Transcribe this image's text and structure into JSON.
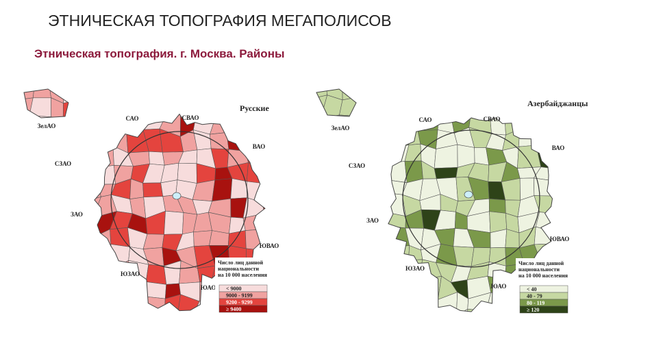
{
  "header": {
    "title": "ЭТНИЧЕСКАЯ ТОПОГРАФИЯ МЕГАПОЛИСОВ",
    "subtitle": "Этническая топография. г. Москва. Районы"
  },
  "maps": [
    {
      "title": "Русские",
      "district_labels": [
        "ЗелАО",
        "САО",
        "СВАО",
        "ВАО",
        "СЗАО",
        "ЗАО",
        "ЮВАО",
        "ЮЗАО",
        "ЮАО"
      ],
      "legend": {
        "title_lines": [
          "Число лиц данной",
          "национальности",
          "на 10 000 населения"
        ],
        "items": [
          {
            "label": "< 9000",
            "color": "#f7dcdc"
          },
          {
            "label": "9000 - 9199",
            "color": "#f0a2a0"
          },
          {
            "label": "9200 - 9299",
            "color": "#e4443e"
          },
          {
            "label": "≥ 9400",
            "color": "#a8120f"
          }
        ]
      }
    },
    {
      "title": "Азербайджанцы",
      "district_labels": [
        "ЗелАО",
        "САО",
        "СВАО",
        "ВАО",
        "СЗАО",
        "ЗАО",
        "ЮВАО",
        "ЮЗАО",
        "ЮАО"
      ],
      "legend": {
        "title_lines": [
          "Число лиц данной",
          "национальности",
          "на 10 000 населения"
        ],
        "items": [
          {
            "label": "< 40",
            "color": "#eef3e1"
          },
          {
            "label": "40 - 79",
            "color": "#c6d8a2"
          },
          {
            "label": "80 - 119",
            "color": "#7b994a"
          },
          {
            "label": "≥ 120",
            "color": "#2e4318"
          }
        ]
      }
    }
  ]
}
